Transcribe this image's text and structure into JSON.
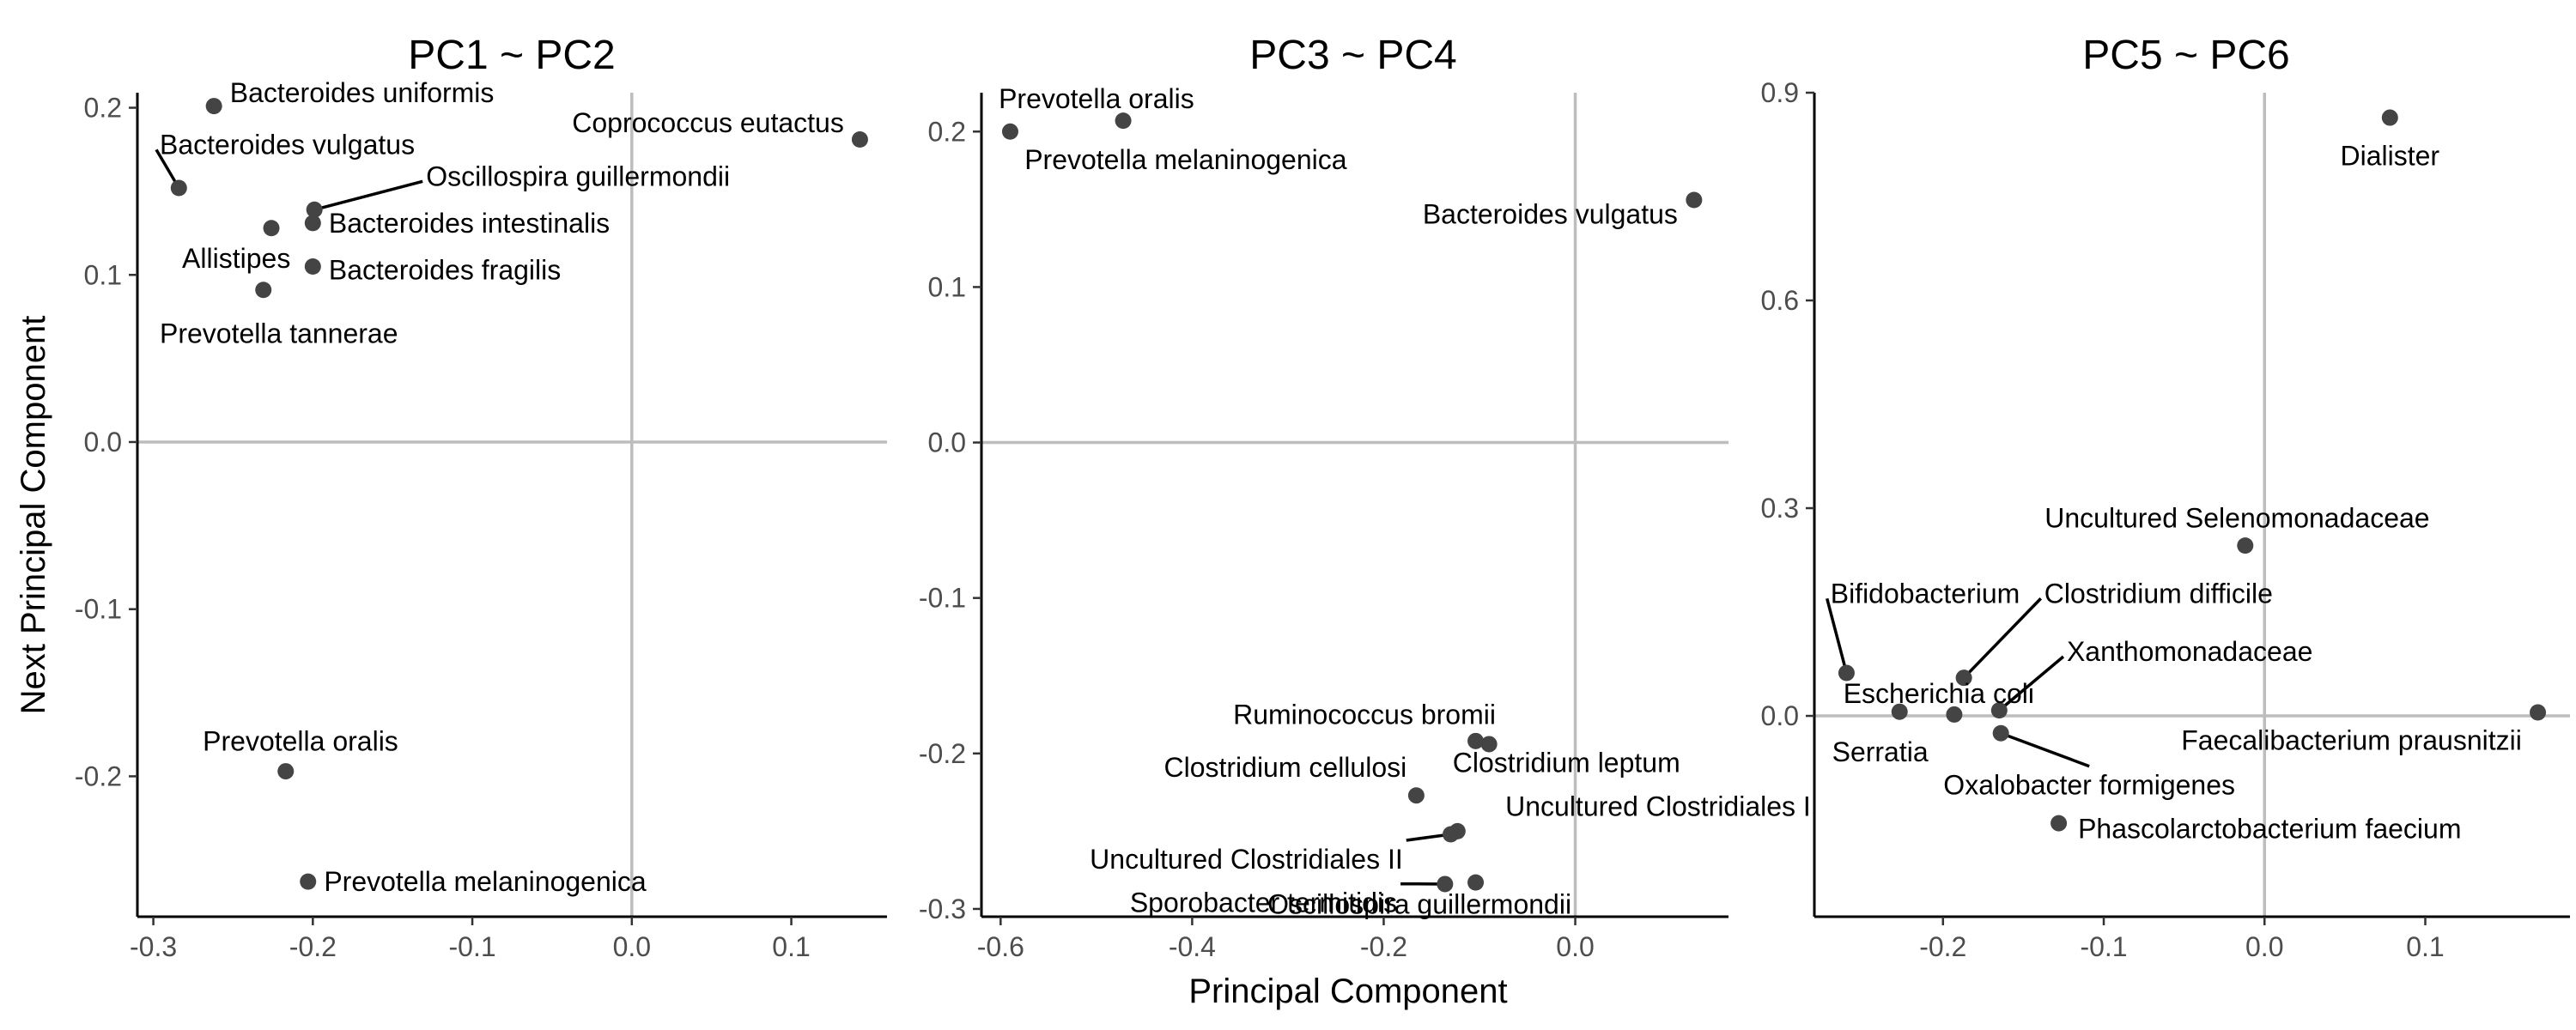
{
  "figure": {
    "ylabel": "Next Principal Component",
    "xlabel": "Principal Component"
  },
  "chart_data": [
    {
      "type": "scatter",
      "title": "PC1 ~ PC2",
      "xlim": [
        -0.31,
        0.16
      ],
      "ylim": [
        -0.284,
        0.209
      ],
      "xticks": [
        -0.3,
        -0.2,
        -0.1,
        0.0,
        0.1
      ],
      "xtick_labels": [
        "-0.3",
        "-0.2",
        "-0.1",
        "0.0",
        "0.1"
      ],
      "yticks": [
        -0.2,
        -0.1,
        0.0,
        0.1,
        0.2
      ],
      "ytick_labels": [
        "-0.2",
        "-0.1",
        "0.0",
        "0.1",
        "0.2"
      ],
      "points": [
        {
          "label": "Bacteroides uniformis",
          "x": -0.262,
          "y": 0.201,
          "dx": 0.01,
          "dy": 0.008,
          "anchor": "start"
        },
        {
          "label": "Coprococcus eutactus",
          "x": 0.143,
          "y": 0.181,
          "dx": -0.01,
          "dy": 0.01,
          "anchor": "end"
        },
        {
          "label": "Bacteroides vulgatus",
          "x": -0.284,
          "y": 0.152,
          "dx": -0.012,
          "dy": 0.026,
          "anchor": "start",
          "leader": true
        },
        {
          "label": "Oscillospira guillermondii",
          "x": -0.199,
          "y": 0.139,
          "dx": 0.07,
          "dy": 0.02,
          "anchor": "start",
          "leader": true
        },
        {
          "label": "Bacteroides intestinalis",
          "x": -0.2,
          "y": 0.131,
          "dx": 0.01,
          "dy": 0.0,
          "anchor": "start"
        },
        {
          "label": "Allistipes",
          "x": -0.226,
          "y": 0.128,
          "dx": 0.012,
          "dy": -0.018,
          "anchor": "end"
        },
        {
          "label": "Bacteroides fragilis",
          "x": -0.2,
          "y": 0.105,
          "dx": 0.01,
          "dy": -0.002,
          "anchor": "start"
        },
        {
          "label": "Prevotella tannerae",
          "x": -0.231,
          "y": 0.091,
          "dx": -0.065,
          "dy": -0.026,
          "anchor": "start"
        },
        {
          "label": "Prevotella oralis",
          "x": -0.217,
          "y": -0.197,
          "dx": -0.052,
          "dy": 0.018,
          "anchor": "start"
        },
        {
          "label": "Prevotella melaninogenica",
          "x": -0.203,
          "y": -0.263,
          "dx": 0.01,
          "dy": 0.0,
          "anchor": "start"
        }
      ]
    },
    {
      "type": "scatter",
      "title": "PC3 ~ PC4",
      "xlim": [
        -0.62,
        0.16
      ],
      "ylim": [
        -0.305,
        0.225
      ],
      "xticks": [
        -0.6,
        -0.4,
        -0.2,
        0.0
      ],
      "xtick_labels": [
        "-0.6",
        "-0.4",
        "-0.2",
        "0.0"
      ],
      "yticks": [
        -0.3,
        -0.2,
        -0.1,
        0.0,
        0.1,
        0.2
      ],
      "ytick_labels": [
        "-0.3",
        "-0.2",
        "-0.1",
        "0.0",
        "0.1",
        "0.2"
      ],
      "points": [
        {
          "label": "Prevotella oralis",
          "x": -0.472,
          "y": 0.207,
          "dx": -0.13,
          "dy": 0.014,
          "anchor": "start"
        },
        {
          "label": "Prevotella melaninogenica",
          "x": -0.59,
          "y": 0.2,
          "dx": 0.015,
          "dy": -0.018,
          "anchor": "start"
        },
        {
          "label": "Bacteroides vulgatus",
          "x": 0.124,
          "y": 0.156,
          "dx": -0.017,
          "dy": -0.009,
          "anchor": "end"
        },
        {
          "label": "Ruminococcus bromii",
          "x": -0.104,
          "y": -0.192,
          "dx": 0.021,
          "dy": 0.017,
          "anchor": "end"
        },
        {
          "label": "Clostridium leptum",
          "x": -0.09,
          "y": -0.194,
          "dx": -0.038,
          "dy": -0.012,
          "anchor": "start"
        },
        {
          "label": "Clostridium cellulosi",
          "x": -0.166,
          "y": -0.227,
          "dx": -0.01,
          "dy": 0.018,
          "anchor": "end"
        },
        {
          "label": "Uncultured Clostridiales I",
          "x": -0.123,
          "y": -0.25,
          "dx": 0.05,
          "dy": 0.016,
          "anchor": "start"
        },
        {
          "label": "Uncultured Clostridiales II",
          "x": -0.13,
          "y": -0.252,
          "dx": -0.05,
          "dy": -0.016,
          "anchor": "end",
          "leader": true
        },
        {
          "label": "Sporobacter termitidis",
          "x": -0.136,
          "y": -0.284,
          "dx": -0.05,
          "dy": -0.012,
          "anchor": "end",
          "leader": true
        },
        {
          "label": "Oscillospira guillermondii",
          "x": -0.104,
          "y": -0.283,
          "dx": 0.1,
          "dy": -0.014,
          "anchor": "end"
        }
      ]
    },
    {
      "type": "scatter",
      "title": "PC5 ~ PC6",
      "xlim": [
        -0.28,
        0.19
      ],
      "ylim": [
        -0.29,
        0.9
      ],
      "xticks": [
        -0.2,
        -0.1,
        0.0,
        0.1
      ],
      "xtick_labels": [
        "-0.2",
        "-0.1",
        "0.0",
        "0.1"
      ],
      "yticks": [
        0.0,
        0.3,
        0.6,
        0.9
      ],
      "ytick_labels": [
        "0.0",
        "0.3",
        "0.6",
        "0.9"
      ],
      "points": [
        {
          "label": "Dialister",
          "x": 0.078,
          "y": 0.864,
          "dx": 0.0,
          "dy": -0.055,
          "anchor": "middle"
        },
        {
          "label": "Uncultured Selenomonadaceae",
          "x": -0.012,
          "y": 0.246,
          "dx": -0.005,
          "dy": 0.04,
          "anchor": "middle"
        },
        {
          "label": "Bifidobacterium",
          "x": -0.26,
          "y": 0.062,
          "dx": -0.01,
          "dy": 0.115,
          "anchor": "start",
          "leader": true
        },
        {
          "label": "Clostridium difficile",
          "x": -0.187,
          "y": 0.055,
          "dx": 0.05,
          "dy": 0.122,
          "anchor": "start",
          "leader": true
        },
        {
          "label": "Xanthomonadaceae",
          "x": -0.165,
          "y": 0.008,
          "dx": 0.042,
          "dy": 0.085,
          "anchor": "start",
          "leader": true
        },
        {
          "label": "Escherichia coli",
          "x": -0.193,
          "y": 0.002,
          "dx": -0.069,
          "dy": 0.03,
          "anchor": "start"
        },
        {
          "label": "Serratia",
          "x": -0.227,
          "y": 0.006,
          "dx": -0.042,
          "dy": -0.058,
          "anchor": "start"
        },
        {
          "label": "Faecalibacterium prausnitzii",
          "x": 0.17,
          "y": 0.005,
          "dx": -0.01,
          "dy": -0.04,
          "anchor": "end"
        },
        {
          "label": "Oxalobacter formigenes",
          "x": -0.164,
          "y": -0.025,
          "dx": 0.055,
          "dy": -0.075,
          "anchor": "middle",
          "leader": true
        },
        {
          "label": "Phascolarctobacterium faecium",
          "x": -0.128,
          "y": -0.155,
          "dx": 0.012,
          "dy": -0.008,
          "anchor": "start"
        }
      ]
    }
  ]
}
